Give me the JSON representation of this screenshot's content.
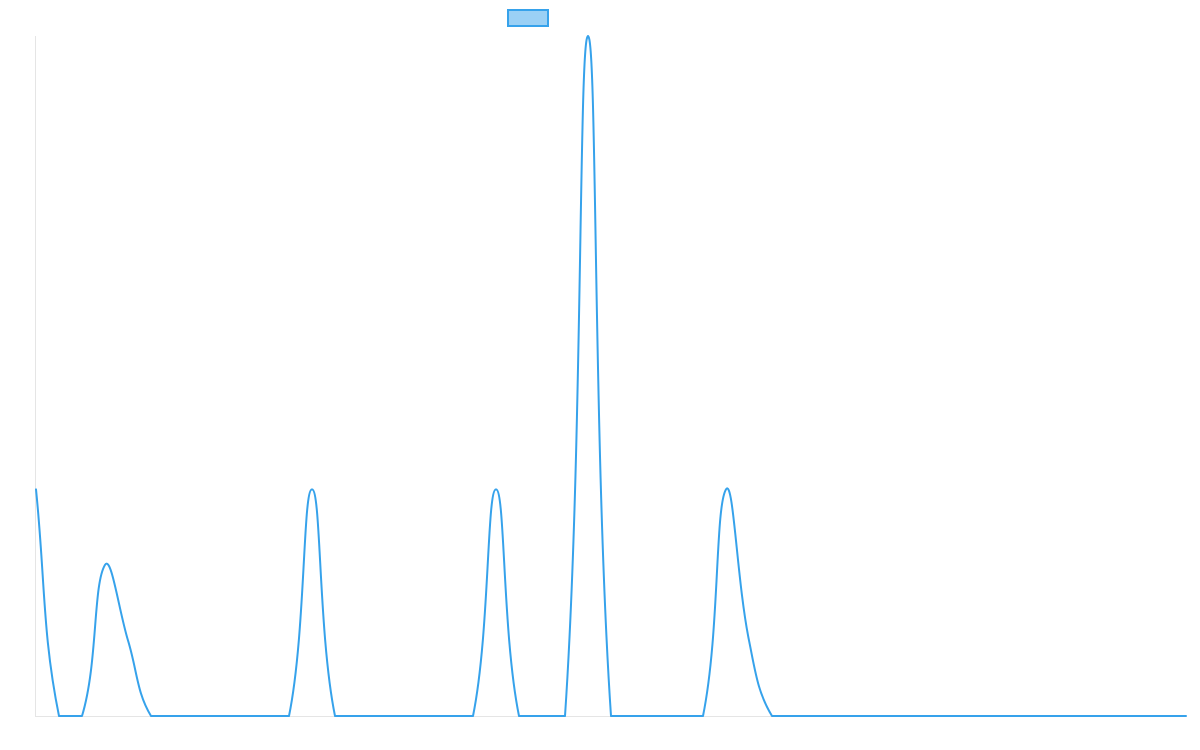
{
  "chart_data": {
    "type": "line",
    "title": "",
    "xlabel": "",
    "ylabel": "",
    "x": [
      0,
      1,
      2,
      3,
      4,
      5,
      6,
      7,
      8,
      9,
      10,
      11,
      12,
      13,
      14,
      15,
      16,
      17,
      18,
      19,
      20,
      21,
      22,
      23,
      24,
      25,
      26,
      27,
      28,
      29,
      30,
      31,
      32,
      33,
      34,
      35,
      36,
      37,
      38,
      39,
      40,
      41,
      42,
      43,
      44,
      45,
      46,
      47,
      48,
      49,
      50
    ],
    "ylim": [
      0,
      9
    ],
    "grid": false,
    "legend": "top-center",
    "series": [
      {
        "name": "",
        "color": "#36a2eb",
        "fill": "#9ad0f5",
        "values": [
          3,
          0,
          0,
          2,
          1,
          0,
          0,
          0,
          0,
          0,
          0,
          0,
          3,
          0,
          0,
          0,
          0,
          0,
          0,
          0,
          3,
          0,
          0,
          0,
          9,
          0,
          0,
          0,
          0,
          0,
          3,
          1,
          0,
          0,
          0,
          0,
          0,
          0,
          0,
          0,
          0,
          0,
          0,
          0,
          0,
          0,
          0,
          0,
          0,
          0,
          0
        ]
      }
    ]
  }
}
